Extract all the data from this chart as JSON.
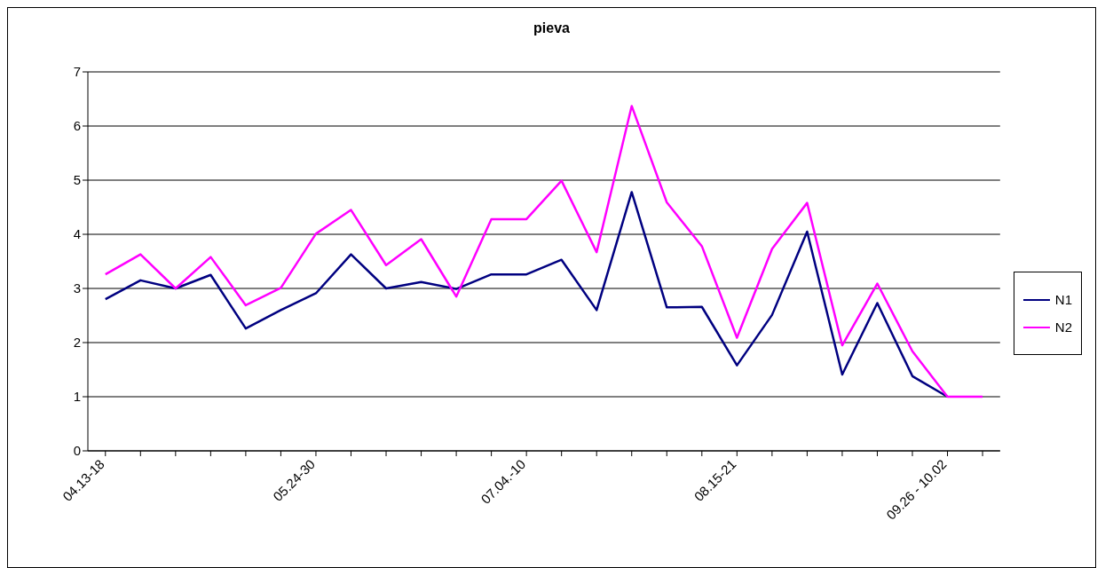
{
  "chart_data": {
    "type": "line",
    "title": "pieva",
    "categories": [
      "04.13-18",
      null,
      null,
      null,
      null,
      null,
      "05.24-30",
      null,
      null,
      null,
      null,
      null,
      "07.04.-10",
      null,
      null,
      null,
      null,
      null,
      "08.15-21",
      null,
      null,
      null,
      null,
      null,
      "09.26 - 10.02",
      null
    ],
    "series": [
      {
        "name": "N1",
        "color": "#000080",
        "values": [
          2.8,
          3.15,
          3.0,
          3.25,
          2.26,
          2.6,
          2.91,
          3.63,
          3.0,
          3.12,
          2.99,
          3.26,
          3.26,
          3.53,
          2.6,
          4.78,
          2.65,
          2.66,
          1.58,
          2.51,
          4.05,
          1.41,
          2.73,
          1.38,
          1.0,
          null
        ]
      },
      {
        "name": "N2",
        "color": "#ff00ff",
        "values": [
          3.26,
          3.63,
          3.0,
          3.58,
          2.69,
          3.01,
          4.01,
          4.45,
          3.43,
          3.91,
          2.85,
          4.28,
          4.28,
          4.99,
          3.67,
          6.37,
          4.59,
          3.78,
          2.09,
          3.73,
          4.58,
          1.95,
          3.09,
          1.84,
          1.0,
          1.0
        ]
      }
    ],
    "ylim": [
      0,
      7
    ],
    "yticks": [
      0,
      1,
      2,
      3,
      4,
      5,
      6,
      7
    ],
    "grid": "y",
    "legend": "right",
    "marker": "none",
    "line_style": "solid"
  }
}
